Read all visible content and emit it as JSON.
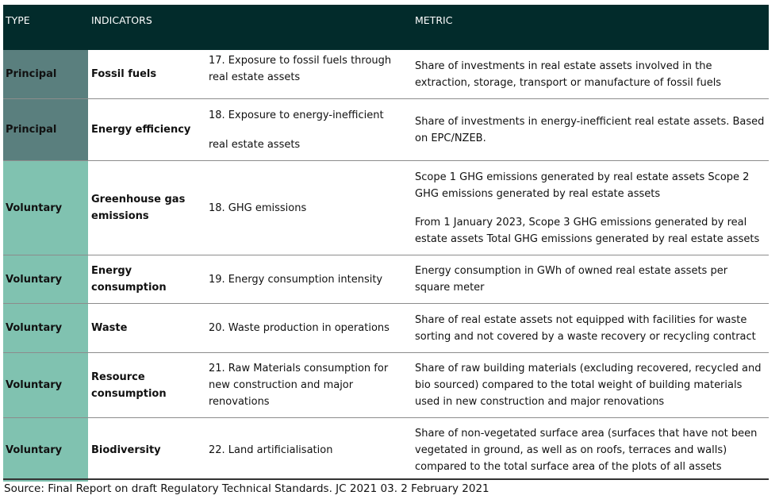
{
  "table": {
    "headers": {
      "type": "TYPE",
      "indicators": "INDICATORS",
      "metric": "METRIC"
    },
    "rows": [
      {
        "type": "Principal",
        "indicator": "Fossil fuels",
        "number": "17. Exposure to fossil fuels through real estate assets",
        "metric": [
          "Share of investments in real estate assets involved in the extraction, storage, transport or manufacture of fossil fuels"
        ]
      },
      {
        "type": "Principal",
        "indicator": "Energy efficiency",
        "number_line1": "18. Exposure to energy-inefficient",
        "number_line2": "real estate assets",
        "metric": [
          "Share of investments in energy-inefficient real estate assets. Based on EPC/NZEB."
        ]
      },
      {
        "type": "Voluntary",
        "indicator": "Greenhouse gas emissions",
        "number": "18. GHG emissions",
        "metric": [
          "Scope 1 GHG emissions generated by real estate assets Scope 2 GHG emissions generated by real estate assets",
          "From 1 January 2023, Scope 3 GHG emissions generated by real estate assets Total GHG emissions generated by real estate assets"
        ]
      },
      {
        "type": "Voluntary",
        "indicator": "Energy consumption",
        "number": "19. Energy consumption intensity",
        "metric": [
          "Energy consumption in GWh of owned real estate assets per square meter"
        ]
      },
      {
        "type": "Voluntary",
        "indicator": "Waste",
        "number": "20. Waste production in operations",
        "metric": [
          "Share of real estate assets not equipped with facilities for waste sorting and not covered by a waste recovery or recycling contract"
        ]
      },
      {
        "type": "Voluntary",
        "indicator": "Resource consumption",
        "number": "21. Raw Materials consumption for new construction and major renovations",
        "metric": [
          "Share of raw building materials (excluding recovered, recycled and bio sourced) compared to the total weight of building materials used in new construction and major renovations"
        ]
      },
      {
        "type": "Voluntary",
        "indicator": "Biodiversity",
        "number": "22. Land artificialisation",
        "metric": [
          "Share of non-vegetated surface area (surfaces that have not been vegetated in ground, as well as on roofs, terraces and walls) compared to the total surface area of the plots of all assets"
        ]
      }
    ]
  },
  "source": "Source: Final Report on draft Regulatory Technical Standards. JC 2021 03. 2 February 2021",
  "colors": {
    "header_bg": "#022b2b",
    "principal_bg": "#5a7f7e",
    "voluntary_bg": "#80c2b0"
  }
}
